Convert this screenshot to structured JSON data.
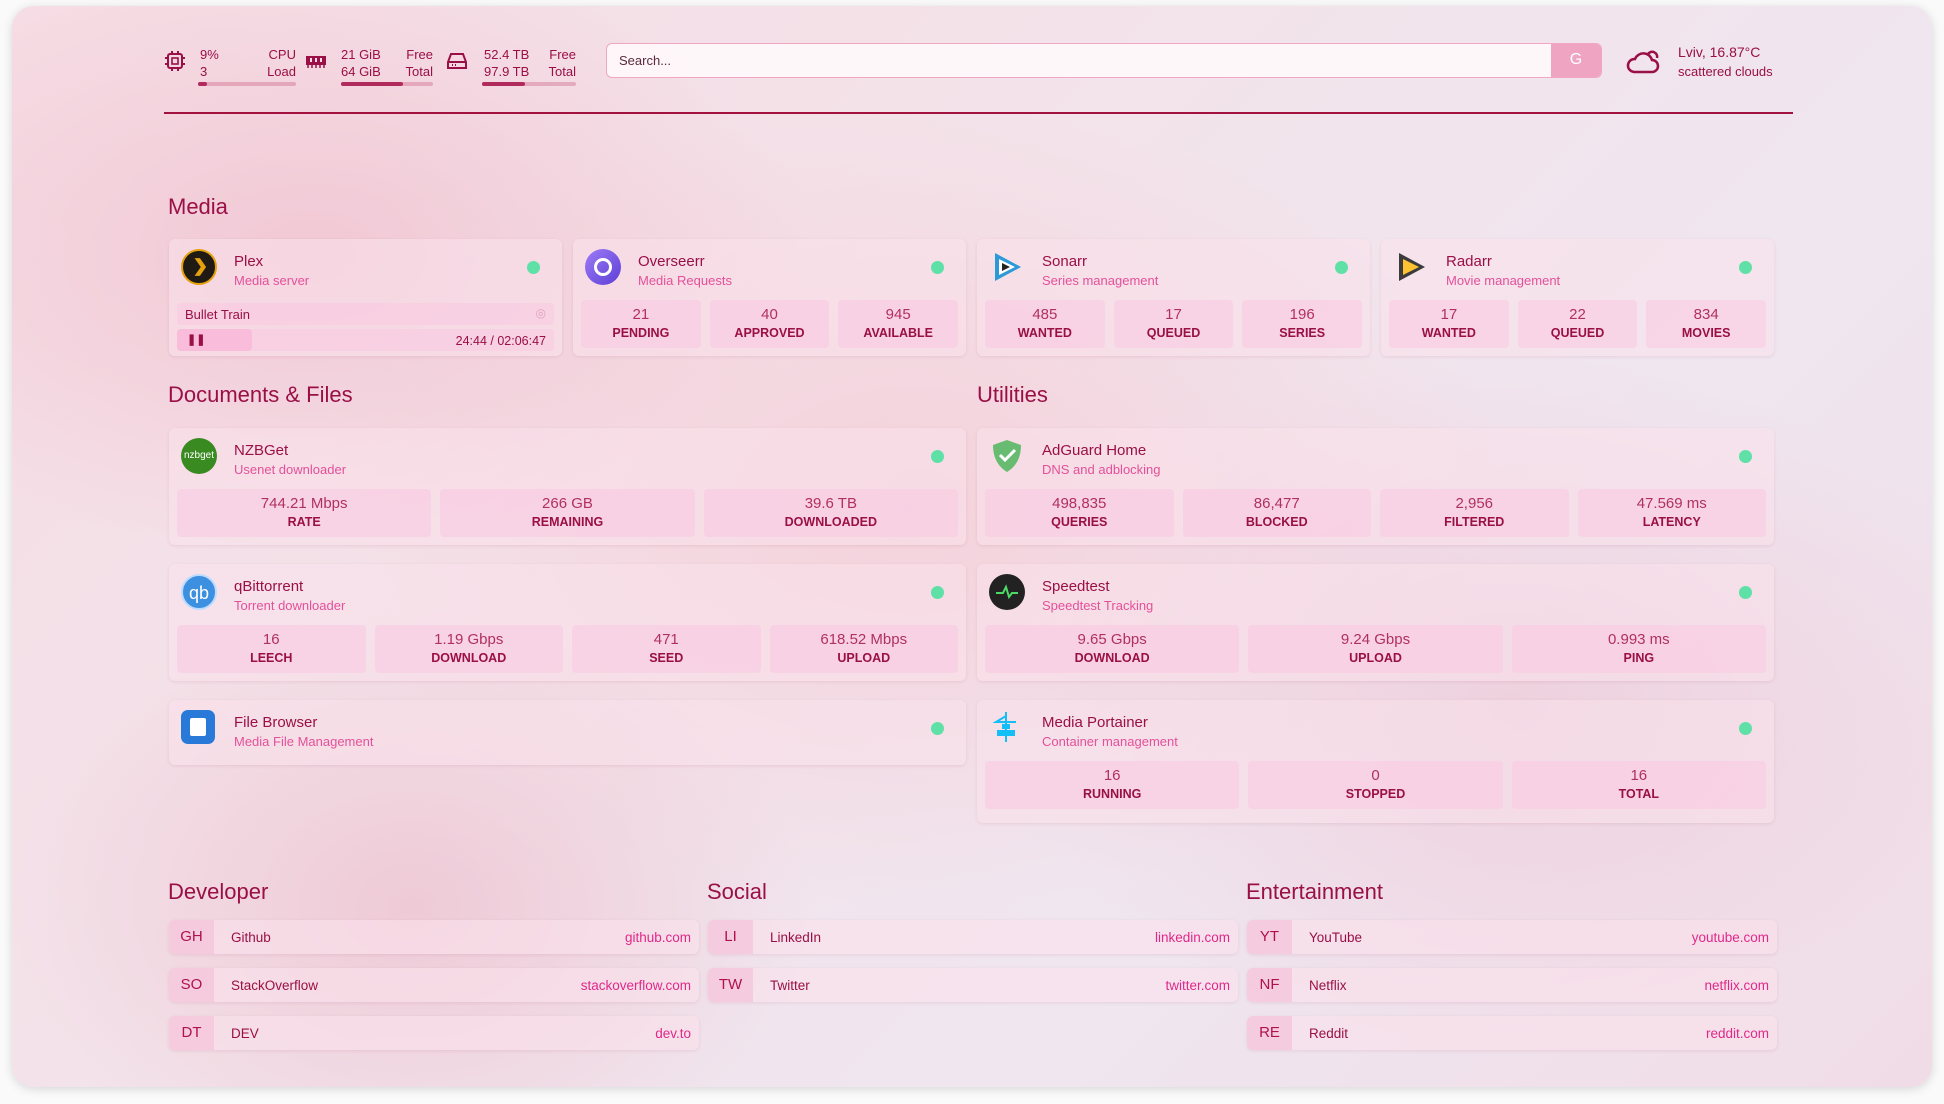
{
  "header": {
    "cpu": {
      "icon": "cpu-icon",
      "value": "9%",
      "sub": "3",
      "label1": "CPU",
      "label2": "Load",
      "fill": 0.09
    },
    "memory": {
      "icon": "memory-icon",
      "value": "21 GiB",
      "sub": "64 GiB",
      "label1": "Free",
      "label2": "Total",
      "fill": 0.67
    },
    "disk": {
      "icon": "disk-icon",
      "value": "52.4 TB",
      "sub": "97.9 TB",
      "label1": "Free",
      "label2": "Total",
      "fill": 0.46
    },
    "search": {
      "placeholder": "Search...",
      "button": "G"
    },
    "weather": {
      "icon": "cloud-sun-icon",
      "location": "Lviv, 16.87°C",
      "condition": "scattered clouds"
    }
  },
  "sections": {
    "media": "Media",
    "docs": "Documents & Files",
    "utilities": "Utilities",
    "developer": "Developer",
    "social": "Social",
    "entertainment": "Entertainment"
  },
  "plex": {
    "name": "Plex",
    "sub": "Media server",
    "title": "Bullet Train",
    "time": "24:44 / 02:06:47",
    "status": "online"
  },
  "services": [
    {
      "id": "overseerr",
      "name": "Overseerr",
      "sub": "Media Requests",
      "icon": "overseerr-icon",
      "stats": [
        [
          "21",
          "PENDING"
        ],
        [
          "40",
          "APPROVED"
        ],
        [
          "945",
          "AVAILABLE"
        ]
      ]
    },
    {
      "id": "sonarr",
      "name": "Sonarr",
      "sub": "Series management",
      "icon": "sonarr-icon",
      "stats": [
        [
          "485",
          "WANTED"
        ],
        [
          "17",
          "QUEUED"
        ],
        [
          "196",
          "SERIES"
        ]
      ]
    },
    {
      "id": "radarr",
      "name": "Radarr",
      "sub": "Movie management",
      "icon": "radarr-icon",
      "stats": [
        [
          "17",
          "WANTED"
        ],
        [
          "22",
          "QUEUED"
        ],
        [
          "834",
          "MOVIES"
        ]
      ]
    },
    {
      "id": "nzbget",
      "name": "NZBGet",
      "sub": "Usenet downloader",
      "icon": "nzbget-icon",
      "stats": [
        [
          "744.21 Mbps",
          "RATE"
        ],
        [
          "266 GB",
          "REMAINING"
        ],
        [
          "39.6 TB",
          "DOWNLOADED"
        ]
      ]
    },
    {
      "id": "qbittorrent",
      "name": "qBittorrent",
      "sub": "Torrent downloader",
      "icon": "qbittorrent-icon",
      "stats": [
        [
          "16",
          "LEECH"
        ],
        [
          "1.19 Gbps",
          "DOWNLOAD"
        ],
        [
          "471",
          "SEED"
        ],
        [
          "618.52 Mbps",
          "UPLOAD"
        ]
      ]
    },
    {
      "id": "filebrowser",
      "name": "File Browser",
      "sub": "Media File Management",
      "icon": "filebrowser-icon",
      "stats": []
    },
    {
      "id": "adguard",
      "name": "AdGuard Home",
      "sub": "DNS and adblocking",
      "icon": "adguard-icon",
      "stats": [
        [
          "498,835",
          "QUERIES"
        ],
        [
          "86,477",
          "BLOCKED"
        ],
        [
          "2,956",
          "FILTERED"
        ],
        [
          "47.569 ms",
          "LATENCY"
        ]
      ]
    },
    {
      "id": "speedtest",
      "name": "Speedtest",
      "sub": "Speedtest Tracking",
      "icon": "speedtest-icon",
      "stats": [
        [
          "9.65 Gbps",
          "DOWNLOAD"
        ],
        [
          "9.24 Gbps",
          "UPLOAD"
        ],
        [
          "0.993 ms",
          "PING"
        ]
      ]
    },
    {
      "id": "portainer",
      "name": "Media Portainer",
      "sub": "Container management",
      "icon": "portainer-icon",
      "stats": [
        [
          "16",
          "RUNNING"
        ],
        [
          "0",
          "STOPPED"
        ],
        [
          "16",
          "TOTAL"
        ]
      ]
    }
  ],
  "bookmarks": {
    "developer": [
      [
        "GH",
        "Github",
        "github.com"
      ],
      [
        "SO",
        "StackOverflow",
        "stackoverflow.com"
      ],
      [
        "DT",
        "DEV",
        "dev.to"
      ]
    ],
    "social": [
      [
        "LI",
        "LinkedIn",
        "linkedin.com"
      ],
      [
        "TW",
        "Twitter",
        "twitter.com"
      ]
    ],
    "entertainment": [
      [
        "YT",
        "YouTube",
        "youtube.com"
      ],
      [
        "NF",
        "Netflix",
        "netflix.com"
      ],
      [
        "RE",
        "Reddit",
        "reddit.com"
      ]
    ]
  },
  "colors": {
    "accent": "#9a0f45",
    "status_online": "#5fe0a6",
    "link": "#e0288a"
  }
}
